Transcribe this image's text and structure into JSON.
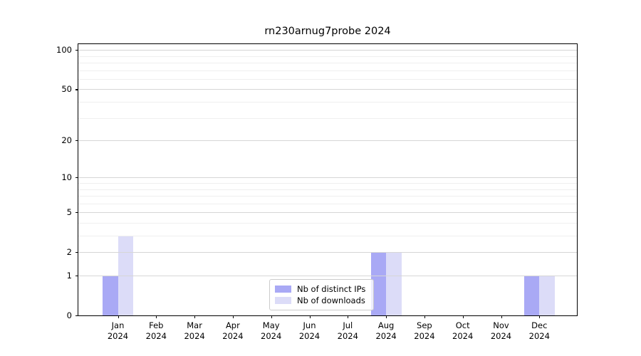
{
  "chart_data": {
    "type": "bar",
    "title": "rn230arnug7probe 2024",
    "xlabel": "",
    "ylabel": "",
    "categories": [
      "Jan 2024",
      "Feb 2024",
      "Mar 2024",
      "Apr 2024",
      "May 2024",
      "Jun 2024",
      "Jul 2024",
      "Aug 2024",
      "Sep 2024",
      "Oct 2024",
      "Nov 2024",
      "Dec 2024"
    ],
    "series": [
      {
        "name": "Nb of distinct IPs",
        "color": "#a9a9f5",
        "values": [
          1,
          0,
          0,
          0,
          0,
          0,
          0,
          2,
          0,
          0,
          0,
          1
        ]
      },
      {
        "name": "Nb of downloads",
        "color": "#dcdcf8",
        "values": [
          3,
          0,
          0,
          0,
          0,
          0,
          0,
          2,
          0,
          0,
          0,
          1
        ]
      }
    ],
    "y_scale": "log10(1+y)",
    "y_major_ticks": [
      100,
      50,
      20,
      10,
      5,
      2,
      1,
      0
    ],
    "y_minor_gridlines": [
      3,
      4,
      6,
      7,
      8,
      9,
      30,
      40,
      60,
      70,
      80,
      90
    ],
    "ylim": [
      0,
      110
    ],
    "grid": true,
    "legend_position": "lower center"
  },
  "colors": {
    "distinct_ips_bar": "#a9a9f5",
    "downloads_bar": "#dcdcf8",
    "major_grid": "#d6d6d6",
    "minor_grid": "#efefef",
    "axis": "#000000",
    "legend_border": "#cccccc"
  }
}
